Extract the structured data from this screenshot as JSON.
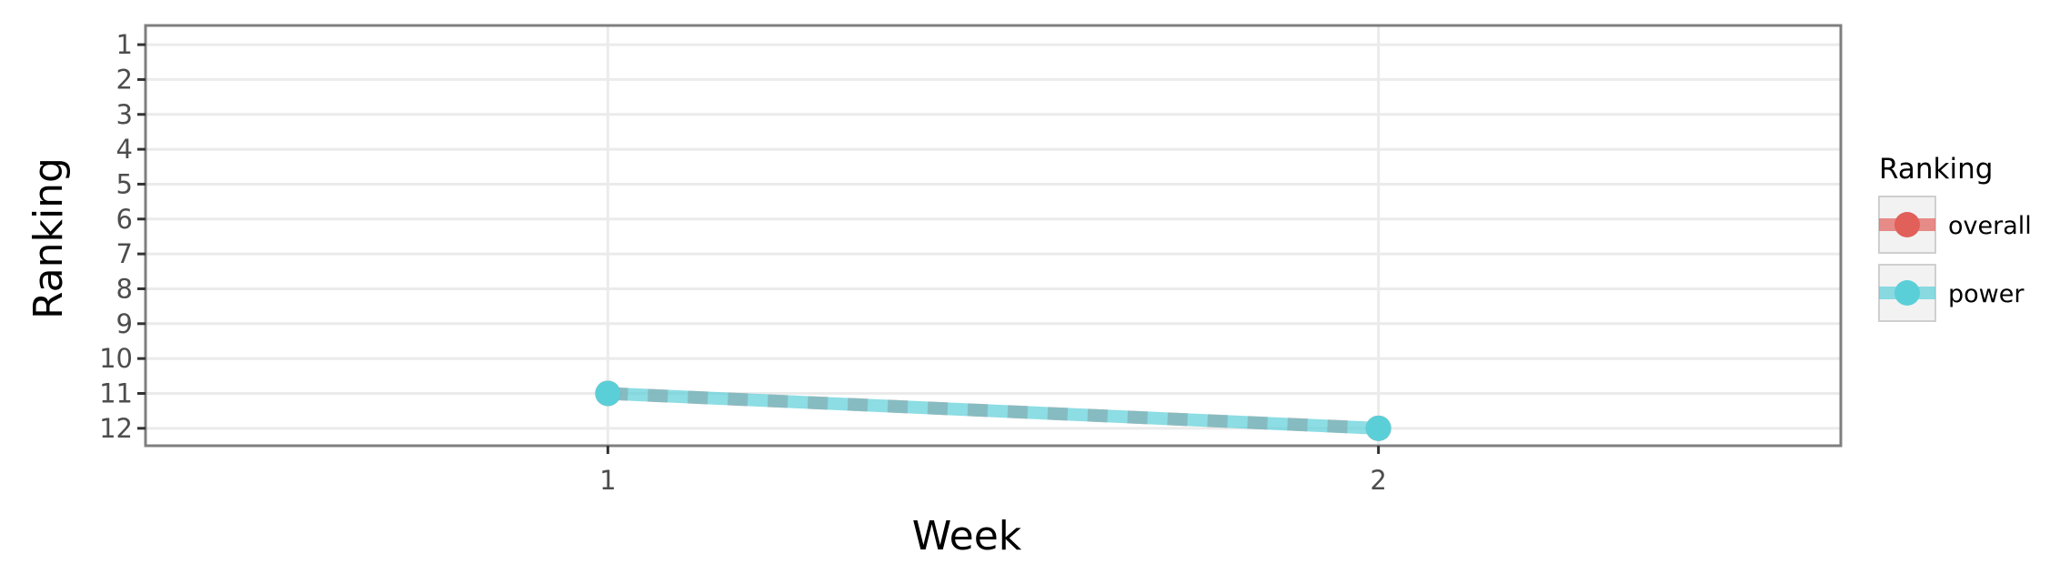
{
  "chart_data": {
    "type": "line",
    "title": "",
    "xlabel": "Week",
    "ylabel": "Ranking",
    "x": [
      1,
      2
    ],
    "xticks": [
      "1",
      "2"
    ],
    "yticks": [
      "1",
      "2",
      "3",
      "4",
      "5",
      "6",
      "7",
      "8",
      "9",
      "10",
      "11",
      "12"
    ],
    "xlim": [
      0.4,
      2.6
    ],
    "ylim": [
      12.5,
      0.45
    ],
    "y_reversed": true,
    "grid": true,
    "legend": {
      "title": "Ranking",
      "placement": "right"
    },
    "series": [
      {
        "name": "overall",
        "values": [
          11,
          12
        ],
        "color": "#E1605A",
        "style": "dashed"
      },
      {
        "name": "power",
        "values": [
          11,
          12
        ],
        "color": "#5BCFD8",
        "style": "solid"
      }
    ]
  }
}
